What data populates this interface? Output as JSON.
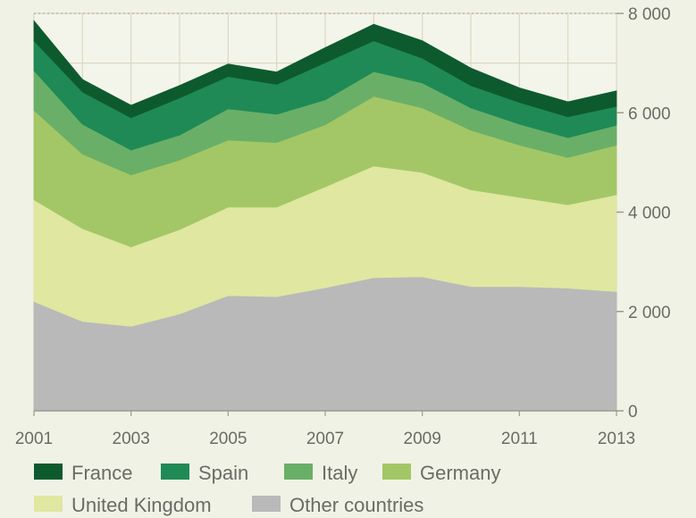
{
  "chart_data": {
    "type": "area",
    "stacked": true,
    "title": "",
    "xlabel": "",
    "ylabel": "",
    "x": [
      2001,
      2002,
      2003,
      2004,
      2005,
      2006,
      2007,
      2008,
      2009,
      2010,
      2011,
      2012,
      2013
    ],
    "x_tick_labels": [
      "2001",
      "2003",
      "2005",
      "2007",
      "2009",
      "2011",
      "2013"
    ],
    "y_tick_labels": [
      "0",
      "2 000",
      "4 000",
      "6 000",
      "8 000"
    ],
    "y_ticks": [
      0,
      2000,
      4000,
      6000,
      8000
    ],
    "xlim": [
      2001,
      2013
    ],
    "ylim": [
      0,
      8000
    ],
    "y_axis_position": "right",
    "grid": true,
    "legend_position": "bottom",
    "series": [
      {
        "name": "Other countries",
        "color": "#b9b9b9",
        "values": [
          2200,
          1800,
          1700,
          1950,
          2320,
          2300,
          2480,
          2680,
          2700,
          2500,
          2500,
          2470,
          2400
        ]
      },
      {
        "name": "United Kingdom",
        "color": "#dfe7a1",
        "values": [
          2050,
          1870,
          1600,
          1700,
          1780,
          1800,
          2030,
          2250,
          2100,
          1950,
          1800,
          1680,
          1950
        ]
      },
      {
        "name": "Germany",
        "color": "#a3c766",
        "values": [
          1800,
          1500,
          1450,
          1400,
          1350,
          1300,
          1250,
          1400,
          1300,
          1200,
          1050,
          950,
          1000
        ]
      },
      {
        "name": "Italy",
        "color": "#6aaf68",
        "values": [
          800,
          600,
          500,
          500,
          630,
          570,
          500,
          500,
          500,
          450,
          420,
          400,
          400
        ]
      },
      {
        "name": "Spain",
        "color": "#1f8a55",
        "values": [
          600,
          650,
          650,
          750,
          650,
          600,
          750,
          620,
          500,
          450,
          440,
          420,
          380
        ]
      },
      {
        "name": "France",
        "color": "#0e5a2f",
        "values": [
          400,
          250,
          250,
          250,
          250,
          250,
          300,
          330,
          350,
          350,
          290,
          300,
          310
        ]
      }
    ]
  }
}
